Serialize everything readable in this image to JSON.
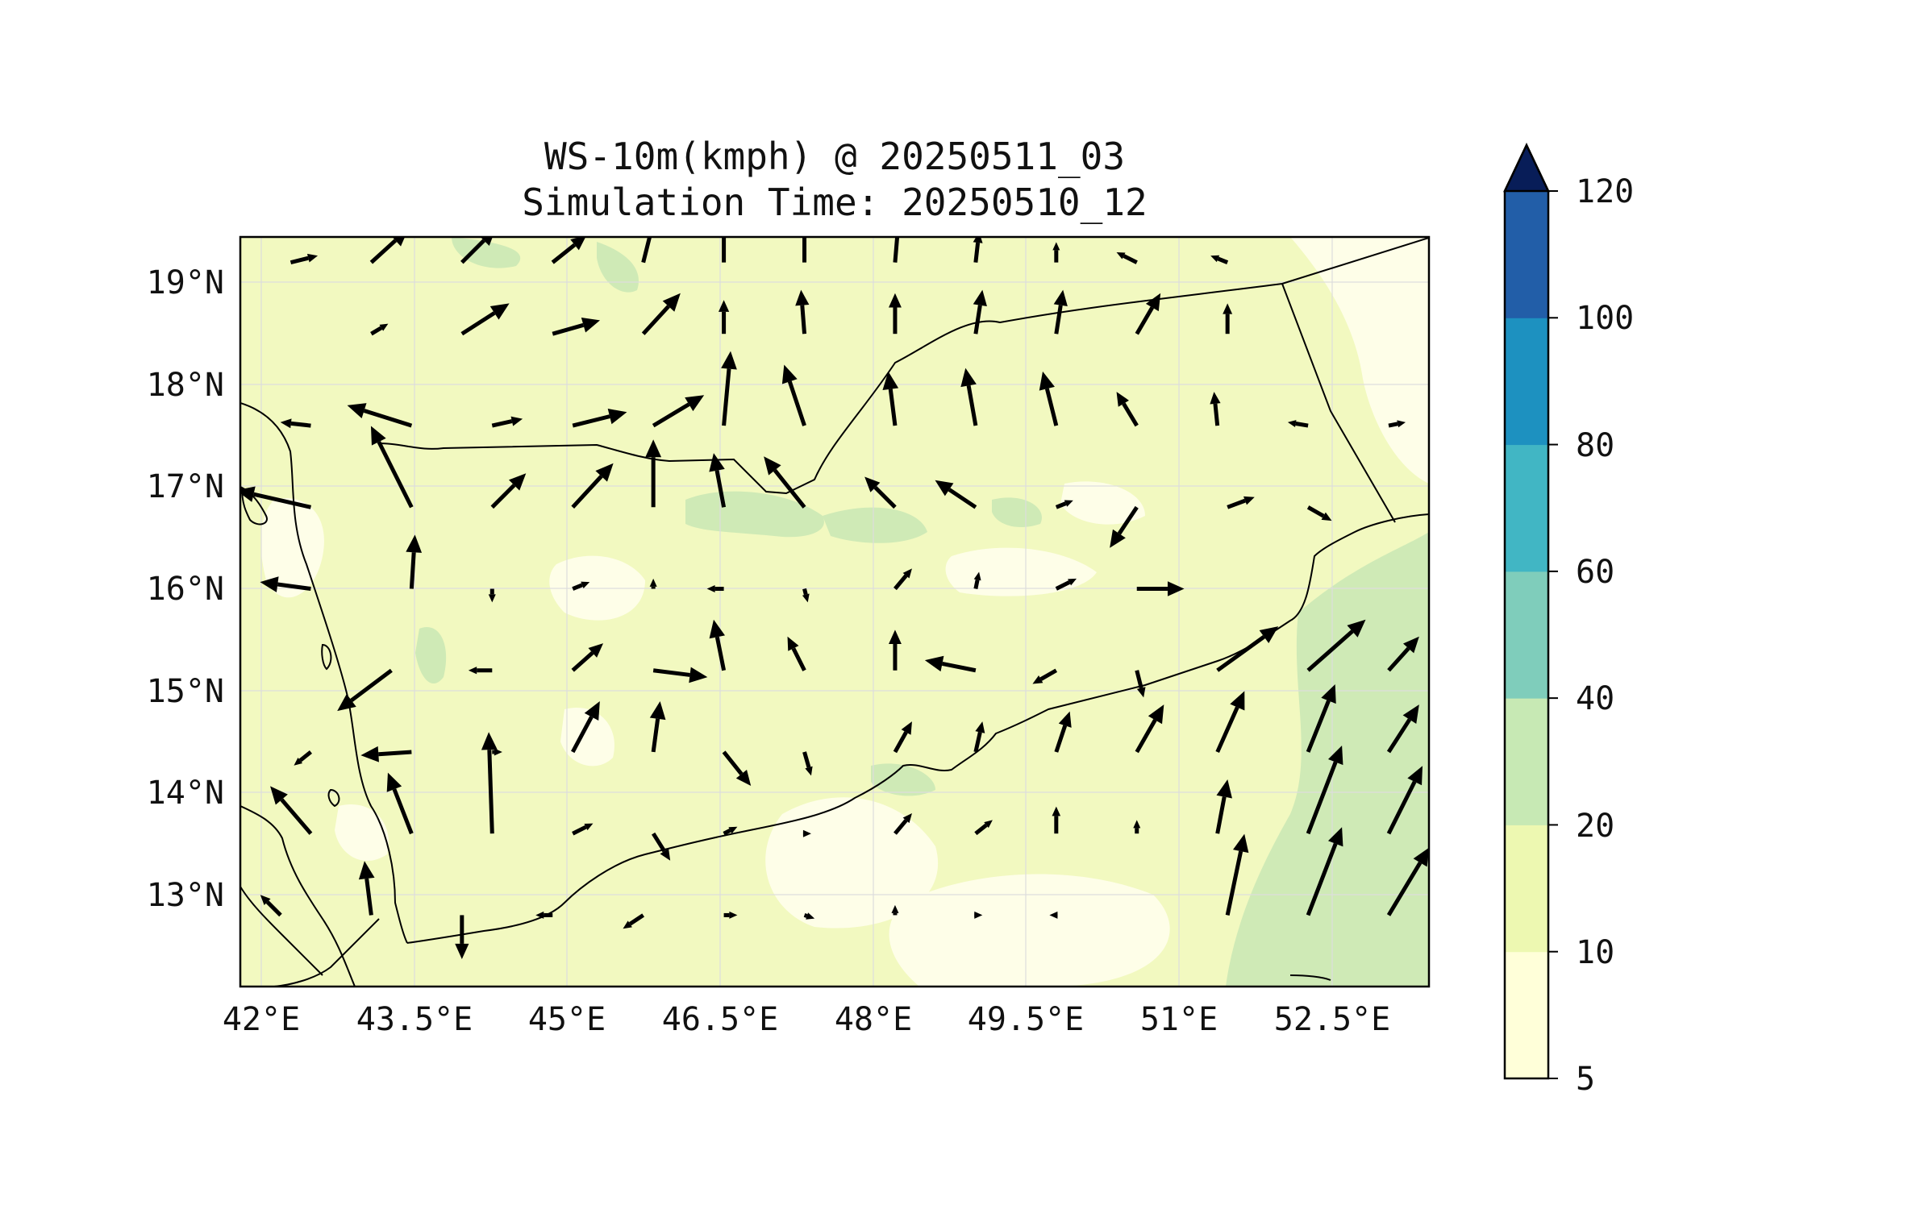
{
  "title_line1": "WS-10m(kmph) @ 20250511_03",
  "title_line2": "Simulation Time: 20250510_12",
  "lon_ticks": [
    "42°E",
    "43.5°E",
    "45°E",
    "46.5°E",
    "48°E",
    "49.5°E",
    "51°E",
    "52.5°E"
  ],
  "lat_ticks": [
    "19°N",
    "18°N",
    "17°N",
    "16°N",
    "15°N",
    "14°N",
    "13°N"
  ],
  "colorbar": {
    "tick_labels": [
      "5",
      "10",
      "20",
      "40",
      "60",
      "80",
      "100",
      "120"
    ],
    "levels": [
      5,
      10,
      20,
      40,
      60,
      80,
      100,
      120
    ],
    "colors": [
      "#ffffd9",
      "#edf8b1",
      "#c7e9b4",
      "#7fcdbb",
      "#41b6c4",
      "#1d91c0",
      "#225ea8",
      "#0c2c84"
    ],
    "extend": "max",
    "extend_color": "#081d58"
  },
  "chart_data": {
    "type": "map",
    "variable": "WS-10m(kmph)",
    "lon_range": [
      41.8,
      53.6
    ],
    "lat_range": [
      12.1,
      19.45
    ],
    "grid": true,
    "field_summary": "wind speed mostly 5-20 kmph over land, 20-40 kmph over the Arabian Sea in the southeast",
    "wind_vectors": [
      {
        "lon": 42.3,
        "lat": 19.2,
        "u": 0.8,
        "v": 0.2
      },
      {
        "lon": 43.1,
        "lat": 19.2,
        "u": 1.1,
        "v": 1.0
      },
      {
        "lon": 44.0,
        "lat": 19.2,
        "u": 1.0,
        "v": 1.0
      },
      {
        "lon": 44.9,
        "lat": 19.2,
        "u": 1.0,
        "v": 0.8
      },
      {
        "lon": 45.8,
        "lat": 19.2,
        "u": 0.3,
        "v": 1.2
      },
      {
        "lon": 46.6,
        "lat": 19.2,
        "u": 0.0,
        "v": 1.2
      },
      {
        "lon": 47.4,
        "lat": 19.2,
        "u": 0.0,
        "v": 1.2
      },
      {
        "lon": 48.3,
        "lat": 19.2,
        "u": 0.1,
        "v": 1.2
      },
      {
        "lon": 49.1,
        "lat": 19.2,
        "u": 0.1,
        "v": 0.9
      },
      {
        "lon": 49.9,
        "lat": 19.2,
        "u": 0.0,
        "v": 0.6
      },
      {
        "lon": 50.7,
        "lat": 19.2,
        "u": -0.6,
        "v": 0.3
      },
      {
        "lon": 51.6,
        "lat": 19.2,
        "u": -0.5,
        "v": 0.2
      },
      {
        "lon": 43.1,
        "lat": 18.5,
        "u": 0.5,
        "v": 0.3
      },
      {
        "lon": 44.0,
        "lat": 18.5,
        "u": 1.4,
        "v": 0.9
      },
      {
        "lon": 44.9,
        "lat": 18.5,
        "u": 1.4,
        "v": 0.4
      },
      {
        "lon": 45.8,
        "lat": 18.5,
        "u": 1.1,
        "v": 1.2
      },
      {
        "lon": 46.6,
        "lat": 18.5,
        "u": 0.0,
        "v": 1.0
      },
      {
        "lon": 47.4,
        "lat": 18.5,
        "u": -0.1,
        "v": 1.3
      },
      {
        "lon": 48.3,
        "lat": 18.5,
        "u": 0.0,
        "v": 1.2
      },
      {
        "lon": 49.1,
        "lat": 18.5,
        "u": 0.2,
        "v": 1.3
      },
      {
        "lon": 49.9,
        "lat": 18.5,
        "u": 0.2,
        "v": 1.3
      },
      {
        "lon": 50.7,
        "lat": 18.5,
        "u": 0.7,
        "v": 1.2
      },
      {
        "lon": 51.6,
        "lat": 18.5,
        "u": 0.0,
        "v": 0.9
      },
      {
        "lon": 42.5,
        "lat": 17.6,
        "u": -0.9,
        "v": 0.1
      },
      {
        "lon": 43.5,
        "lat": 17.6,
        "u": -1.9,
        "v": 0.6
      },
      {
        "lon": 44.3,
        "lat": 17.6,
        "u": 0.9,
        "v": 0.2
      },
      {
        "lon": 45.1,
        "lat": 17.6,
        "u": 1.6,
        "v": 0.4
      },
      {
        "lon": 45.9,
        "lat": 17.6,
        "u": 1.5,
        "v": 0.9
      },
      {
        "lon": 46.6,
        "lat": 17.6,
        "u": 0.2,
        "v": 2.2
      },
      {
        "lon": 47.4,
        "lat": 17.6,
        "u": -0.6,
        "v": 1.8
      },
      {
        "lon": 48.3,
        "lat": 17.6,
        "u": -0.2,
        "v": 1.6
      },
      {
        "lon": 49.1,
        "lat": 17.6,
        "u": -0.3,
        "v": 1.7
      },
      {
        "lon": 49.9,
        "lat": 17.6,
        "u": -0.4,
        "v": 1.6
      },
      {
        "lon": 50.7,
        "lat": 17.6,
        "u": -0.6,
        "v": 1.0
      },
      {
        "lon": 51.5,
        "lat": 17.6,
        "u": -0.1,
        "v": 1.0
      },
      {
        "lon": 52.4,
        "lat": 17.6,
        "u": -0.6,
        "v": 0.1
      },
      {
        "lon": 53.2,
        "lat": 17.6,
        "u": 0.5,
        "v": 0.1
      },
      {
        "lon": 42.5,
        "lat": 16.8,
        "u": -2.2,
        "v": 0.5
      },
      {
        "lon": 43.5,
        "lat": 16.8,
        "u": -1.2,
        "v": 2.4
      },
      {
        "lon": 44.3,
        "lat": 16.8,
        "u": 1.0,
        "v": 1.0
      },
      {
        "lon": 45.1,
        "lat": 16.8,
        "u": 1.2,
        "v": 1.3
      },
      {
        "lon": 45.9,
        "lat": 16.8,
        "u": 0.0,
        "v": 2.0
      },
      {
        "lon": 46.6,
        "lat": 16.8,
        "u": -0.3,
        "v": 1.6
      },
      {
        "lon": 47.4,
        "lat": 16.8,
        "u": -1.2,
        "v": 1.5
      },
      {
        "lon": 48.3,
        "lat": 16.8,
        "u": -0.9,
        "v": 0.9
      },
      {
        "lon": 49.1,
        "lat": 16.8,
        "u": -1.2,
        "v": 0.8
      },
      {
        "lon": 49.9,
        "lat": 16.8,
        "u": 0.5,
        "v": 0.2
      },
      {
        "lon": 50.7,
        "lat": 16.8,
        "u": -0.8,
        "v": -1.2
      },
      {
        "lon": 51.6,
        "lat": 16.8,
        "u": 0.8,
        "v": 0.3
      },
      {
        "lon": 52.4,
        "lat": 16.8,
        "u": 0.7,
        "v": -0.4
      },
      {
        "lon": 42.5,
        "lat": 16.0,
        "u": -1.5,
        "v": 0.2
      },
      {
        "lon": 43.5,
        "lat": 16.0,
        "u": 0.1,
        "v": 1.6
      },
      {
        "lon": 44.3,
        "lat": 16.0,
        "u": 0.0,
        "v": -0.4
      },
      {
        "lon": 45.1,
        "lat": 16.0,
        "u": 0.5,
        "v": 0.2
      },
      {
        "lon": 45.9,
        "lat": 16.0,
        "u": 0.0,
        "v": 0.3
      },
      {
        "lon": 46.6,
        "lat": 16.0,
        "u": -0.5,
        "v": 0.0
      },
      {
        "lon": 47.4,
        "lat": 16.0,
        "u": 0.1,
        "v": -0.4
      },
      {
        "lon": 48.3,
        "lat": 16.0,
        "u": 0.5,
        "v": 0.6
      },
      {
        "lon": 49.1,
        "lat": 16.0,
        "u": 0.1,
        "v": 0.5
      },
      {
        "lon": 49.9,
        "lat": 16.0,
        "u": 0.6,
        "v": 0.3
      },
      {
        "lon": 50.7,
        "lat": 16.0,
        "u": 1.4,
        "v": 0.0
      },
      {
        "lon": 43.3,
        "lat": 15.2,
        "u": -1.6,
        "v": -1.2
      },
      {
        "lon": 44.3,
        "lat": 15.2,
        "u": -0.7,
        "v": 0.0
      },
      {
        "lon": 45.1,
        "lat": 15.2,
        "u": 0.9,
        "v": 0.8
      },
      {
        "lon": 45.9,
        "lat": 15.2,
        "u": 1.6,
        "v": -0.2
      },
      {
        "lon": 46.6,
        "lat": 15.2,
        "u": -0.3,
        "v": 1.5
      },
      {
        "lon": 47.4,
        "lat": 15.2,
        "u": -0.5,
        "v": 1.0
      },
      {
        "lon": 48.3,
        "lat": 15.2,
        "u": 0.0,
        "v": 1.2
      },
      {
        "lon": 49.1,
        "lat": 15.2,
        "u": -1.5,
        "v": 0.3
      },
      {
        "lon": 49.9,
        "lat": 15.2,
        "u": -0.7,
        "v": -0.4
      },
      {
        "lon": 50.7,
        "lat": 15.2,
        "u": 0.2,
        "v": -0.8
      },
      {
        "lon": 51.5,
        "lat": 15.2,
        "u": 1.8,
        "v": 1.3
      },
      {
        "lon": 52.4,
        "lat": 15.2,
        "u": 1.7,
        "v": 1.5
      },
      {
        "lon": 53.2,
        "lat": 15.2,
        "u": 0.9,
        "v": 1.0
      },
      {
        "lon": 42.5,
        "lat": 14.4,
        "u": -0.5,
        "v": -0.4
      },
      {
        "lon": 43.5,
        "lat": 14.4,
        "u": -1.5,
        "v": -0.1
      },
      {
        "lon": 44.3,
        "lat": 14.4,
        "u": 0.3,
        "v": 0.0
      },
      {
        "lon": 45.1,
        "lat": 14.4,
        "u": 0.8,
        "v": 1.5
      },
      {
        "lon": 45.9,
        "lat": 14.4,
        "u": 0.2,
        "v": 1.5
      },
      {
        "lon": 46.6,
        "lat": 14.4,
        "u": 0.8,
        "v": -1.0
      },
      {
        "lon": 47.4,
        "lat": 14.4,
        "u": 0.2,
        "v": -0.7
      },
      {
        "lon": 48.3,
        "lat": 14.4,
        "u": 0.5,
        "v": 0.9
      },
      {
        "lon": 49.1,
        "lat": 14.4,
        "u": 0.2,
        "v": 0.9
      },
      {
        "lon": 49.9,
        "lat": 14.4,
        "u": 0.4,
        "v": 1.2
      },
      {
        "lon": 50.7,
        "lat": 14.4,
        "u": 0.8,
        "v": 1.4
      },
      {
        "lon": 51.5,
        "lat": 14.4,
        "u": 0.8,
        "v": 1.8
      },
      {
        "lon": 52.4,
        "lat": 14.4,
        "u": 0.8,
        "v": 2.0
      },
      {
        "lon": 53.2,
        "lat": 14.4,
        "u": 0.9,
        "v": 1.4
      },
      {
        "lon": 42.5,
        "lat": 13.6,
        "u": -1.2,
        "v": 1.4
      },
      {
        "lon": 43.5,
        "lat": 13.6,
        "u": -0.7,
        "v": 1.8
      },
      {
        "lon": 44.3,
        "lat": 13.6,
        "u": -0.1,
        "v": 3.0
      },
      {
        "lon": 45.1,
        "lat": 13.6,
        "u": 0.6,
        "v": 0.3
      },
      {
        "lon": 45.9,
        "lat": 13.6,
        "u": 0.5,
        "v": -0.8
      },
      {
        "lon": 46.6,
        "lat": 13.6,
        "u": 0.4,
        "v": 0.2
      },
      {
        "lon": 47.4,
        "lat": 13.6,
        "u": 0.2,
        "v": 0.0
      },
      {
        "lon": 48.3,
        "lat": 13.6,
        "u": 0.5,
        "v": 0.6
      },
      {
        "lon": 49.1,
        "lat": 13.6,
        "u": 0.5,
        "v": 0.4
      },
      {
        "lon": 49.9,
        "lat": 13.6,
        "u": 0.0,
        "v": 0.8
      },
      {
        "lon": 50.7,
        "lat": 13.6,
        "u": 0.0,
        "v": 0.4
      },
      {
        "lon": 51.5,
        "lat": 13.6,
        "u": 0.3,
        "v": 1.6
      },
      {
        "lon": 52.4,
        "lat": 13.6,
        "u": 1.0,
        "v": 2.6
      },
      {
        "lon": 53.2,
        "lat": 13.6,
        "u": 1.0,
        "v": 2.0
      },
      {
        "lon": 42.2,
        "lat": 12.8,
        "u": -0.6,
        "v": 0.6
      },
      {
        "lon": 43.1,
        "lat": 12.8,
        "u": -0.2,
        "v": 1.6
      },
      {
        "lon": 44.0,
        "lat": 12.8,
        "u": 0.0,
        "v": -1.3
      },
      {
        "lon": 44.9,
        "lat": 12.8,
        "u": -0.5,
        "v": 0.0
      },
      {
        "lon": 45.8,
        "lat": 12.8,
        "u": -0.6,
        "v": -0.4
      },
      {
        "lon": 46.6,
        "lat": 12.8,
        "u": 0.4,
        "v": 0.0
      },
      {
        "lon": 47.4,
        "lat": 12.8,
        "u": 0.3,
        "v": -0.1
      },
      {
        "lon": 48.3,
        "lat": 12.8,
        "u": 0.0,
        "v": 0.3
      },
      {
        "lon": 49.1,
        "lat": 12.8,
        "u": 0.2,
        "v": 0.0
      },
      {
        "lon": 49.9,
        "lat": 12.8,
        "u": -0.2,
        "v": 0.0
      },
      {
        "lon": 51.6,
        "lat": 12.8,
        "u": 0.5,
        "v": 2.4
      },
      {
        "lon": 52.4,
        "lat": 12.8,
        "u": 1.0,
        "v": 2.6
      },
      {
        "lon": 53.2,
        "lat": 12.8,
        "u": 1.2,
        "v": 2.0
      }
    ]
  }
}
